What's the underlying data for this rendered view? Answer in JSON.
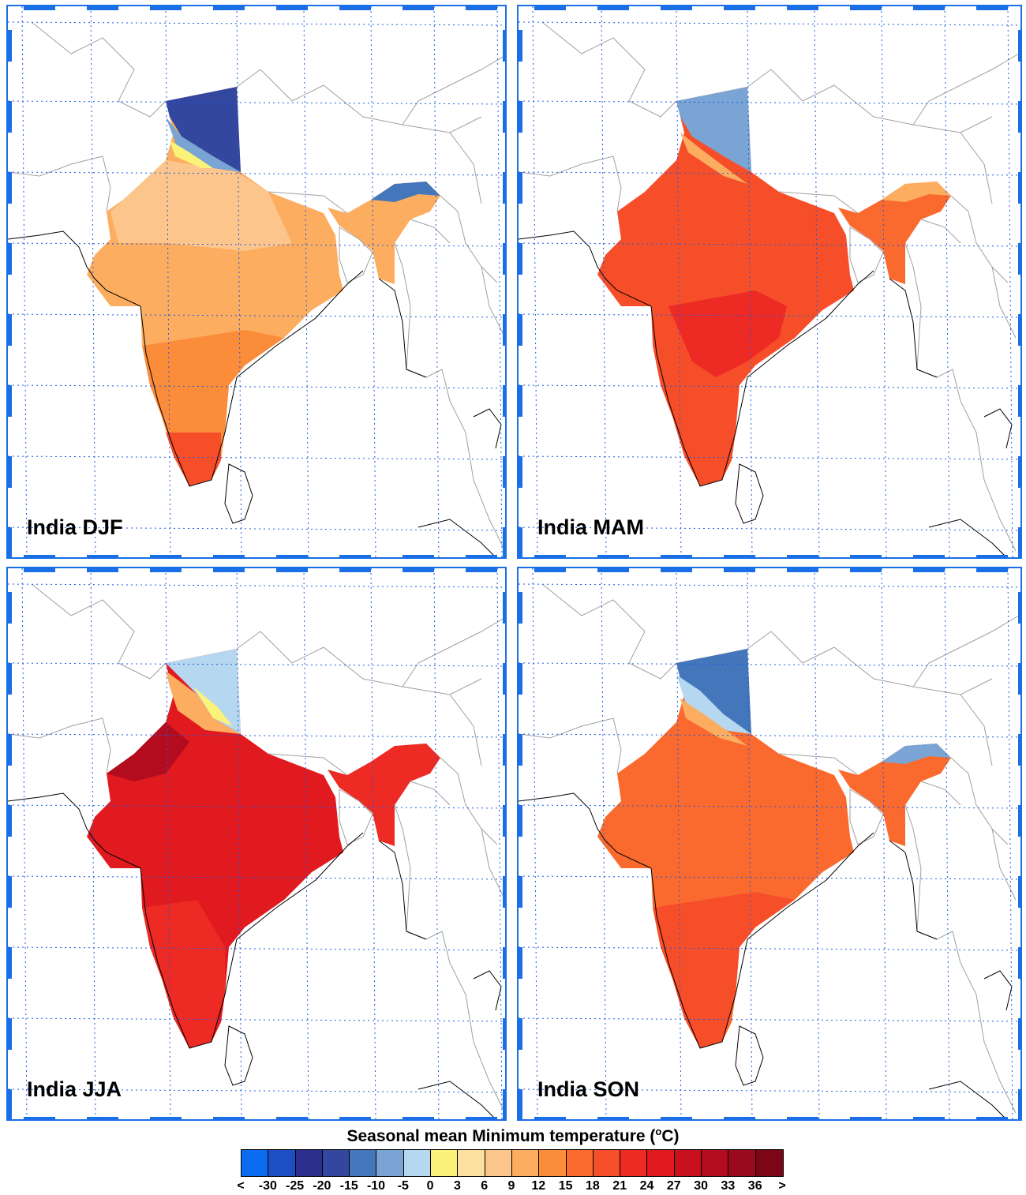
{
  "panels": [
    {
      "label": "India DJF",
      "season": "DJF"
    },
    {
      "label": "India MAM",
      "season": "MAM"
    },
    {
      "label": "India JJA",
      "season": "JJA"
    },
    {
      "label": "India SON",
      "season": "SON"
    }
  ],
  "legend": {
    "title_text": "Seasonal mean Minimum temperature (",
    "title_sup": "o",
    "title_end": "C)",
    "ticks": [
      "<",
      "-30",
      "-25",
      "-20",
      "-15",
      "-10",
      "-5",
      "0",
      "3",
      "6",
      "9",
      "12",
      "15",
      "18",
      "21",
      "24",
      "27",
      "30",
      "33",
      "36",
      ">"
    ],
    "colors": [
      "#0a6cf0",
      "#1c4fc4",
      "#2c2f8e",
      "#33479f",
      "#4476bb",
      "#7aa4d4",
      "#b5d7ef",
      "#fbf27a",
      "#fde0a0",
      "#fcc58b",
      "#fcad5f",
      "#fb8c3a",
      "#fa6a2e",
      "#f74e2a",
      "#ed2a24",
      "#e01a1f",
      "#c8101c",
      "#b30c1e",
      "#990a1e",
      "#7a0616"
    ]
  }
}
